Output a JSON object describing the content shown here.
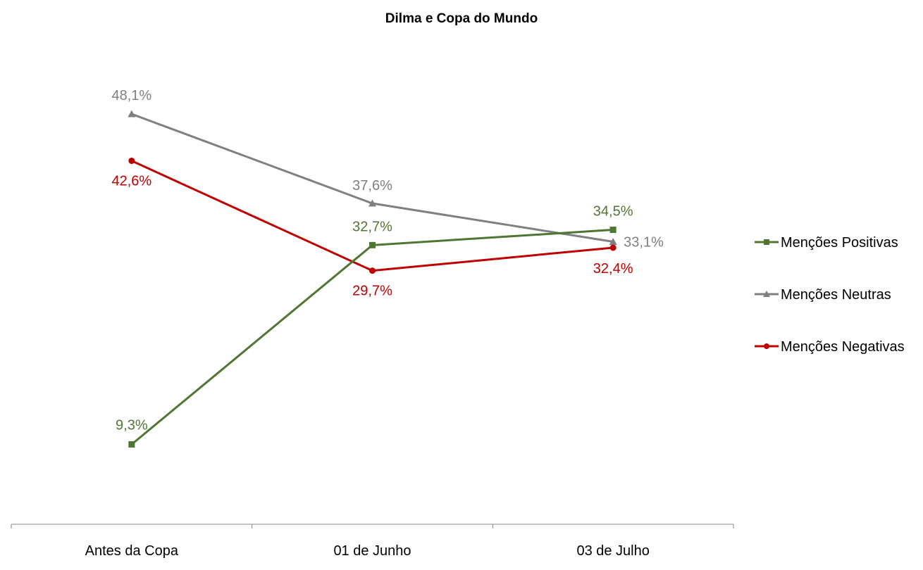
{
  "chart_data": {
    "type": "line",
    "title": "Dilma e Copa do Mundo",
    "xlabel": "",
    "ylabel": "",
    "categories": [
      "Antes da Copa",
      "01 de Junho",
      "03 de Julho"
    ],
    "ylim": [
      0,
      60
    ],
    "grid": false,
    "legend_position": "right",
    "series": [
      {
        "name": "Menções Positivas",
        "values": [
          9.3,
          32.7,
          34.5
        ],
        "labels": [
          "9,3%",
          "32,7%",
          "34,5%"
        ],
        "color": "#4f7632",
        "marker": "square"
      },
      {
        "name": "Menções Neutras",
        "values": [
          48.1,
          37.6,
          33.1
        ],
        "labels": [
          "48,1%",
          "37,6%",
          "33,1%"
        ],
        "color": "#808080",
        "marker": "triangle"
      },
      {
        "name": "Menções Negativas",
        "values": [
          42.6,
          29.7,
          32.4
        ],
        "labels": [
          "42,6%",
          "29,7%",
          "32,4%"
        ],
        "color": "#c00000",
        "marker": "circle"
      }
    ]
  }
}
